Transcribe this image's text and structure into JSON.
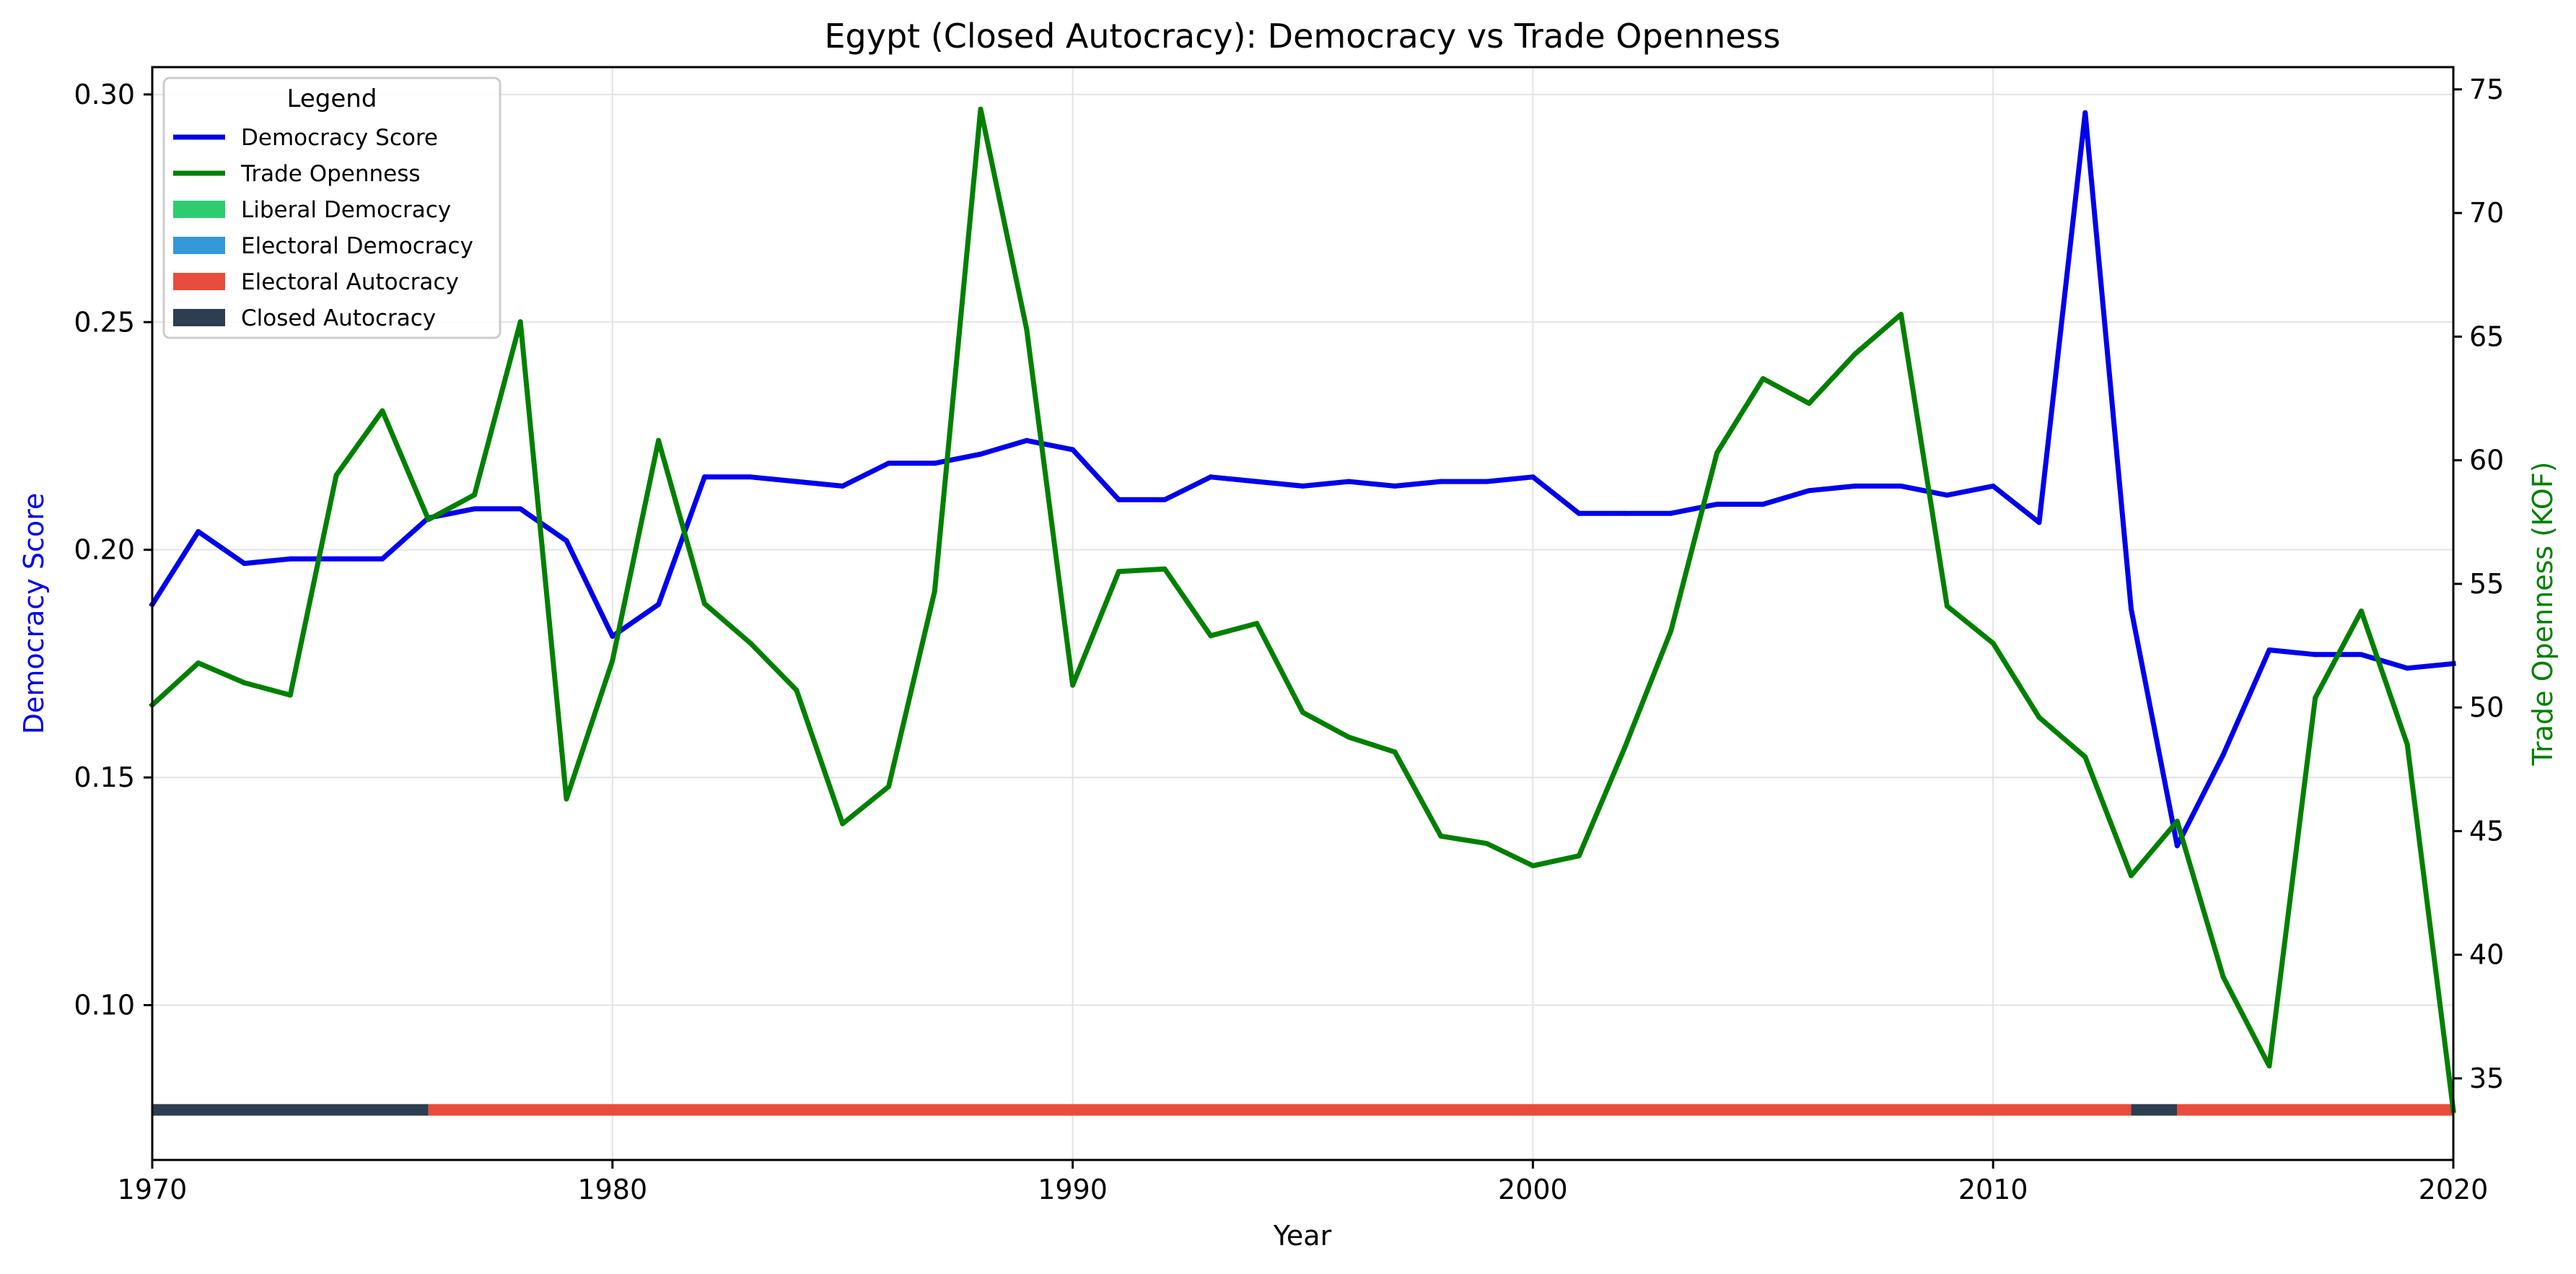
{
  "chart_data": {
    "type": "line",
    "title": "Egypt (Closed Autocracy): Democracy vs Trade Openness",
    "xlabel": "Year",
    "ylabel_left": "Democracy Score",
    "ylabel_right": "Trade Openness (KOF)",
    "xlim": [
      1970,
      2020
    ],
    "ylim_left": [
      0.066,
      0.306
    ],
    "ylim_right": [
      31.7,
      75.9
    ],
    "x_ticks": [
      "1970",
      "1980",
      "1990",
      "2000",
      "2010",
      "2020"
    ],
    "y_ticks_left": [
      "0.10",
      "0.15",
      "0.20",
      "0.25",
      "0.30"
    ],
    "y_ticks_right": [
      "35",
      "40",
      "45",
      "50",
      "55",
      "60",
      "65",
      "70",
      "75"
    ],
    "grid": true,
    "legend": {
      "title": "Legend",
      "placement": "upper-left",
      "entries": [
        {
          "label": "Democracy Score",
          "kind": "line",
          "color": "#0000ee"
        },
        {
          "label": "Trade Openness",
          "kind": "line",
          "color": "#008000"
        },
        {
          "label": "Liberal Democracy",
          "kind": "patch",
          "color": "#2ecc71"
        },
        {
          "label": "Electoral Democracy",
          "kind": "patch",
          "color": "#3498db"
        },
        {
          "label": "Electoral Autocracy",
          "kind": "patch",
          "color": "#e74c3c"
        },
        {
          "label": "Closed Autocracy",
          "kind": "patch",
          "color": "#2c3e50"
        }
      ]
    },
    "x": [
      1970,
      1971,
      1972,
      1973,
      1974,
      1975,
      1976,
      1977,
      1978,
      1979,
      1980,
      1981,
      1982,
      1983,
      1984,
      1985,
      1986,
      1987,
      1988,
      1989,
      1990,
      1991,
      1992,
      1993,
      1994,
      1995,
      1996,
      1997,
      1998,
      1999,
      2000,
      2001,
      2002,
      2003,
      2004,
      2005,
      2006,
      2007,
      2008,
      2009,
      2010,
      2011,
      2012,
      2013,
      2014,
      2015,
      2016,
      2017,
      2018,
      2019,
      2020
    ],
    "series": [
      {
        "name": "Democracy Score",
        "axis": "left",
        "color": "#0000ee",
        "values": [
          0.188,
          0.204,
          0.197,
          0.198,
          0.198,
          0.198,
          0.207,
          0.209,
          0.209,
          0.202,
          0.181,
          0.188,
          0.216,
          0.216,
          0.215,
          0.214,
          0.219,
          0.219,
          0.221,
          0.224,
          0.222,
          0.211,
          0.211,
          0.216,
          0.215,
          0.214,
          0.215,
          0.214,
          0.215,
          0.215,
          0.216,
          0.208,
          0.208,
          0.208,
          0.21,
          0.21,
          0.213,
          0.214,
          0.214,
          0.212,
          0.214,
          0.206,
          0.296,
          0.187,
          0.135,
          0.155,
          0.178,
          0.177,
          0.177,
          0.174,
          0.175
        ]
      },
      {
        "name": "Trade Openness",
        "axis": "right",
        "color": "#008000",
        "values": [
          50.1,
          51.8,
          51.0,
          50.5,
          59.4,
          62.0,
          57.6,
          58.6,
          65.6,
          46.3,
          51.9,
          60.8,
          54.2,
          52.6,
          50.7,
          45.3,
          46.8,
          54.7,
          74.2,
          65.3,
          50.9,
          55.5,
          55.6,
          52.9,
          53.4,
          49.8,
          48.8,
          48.2,
          44.8,
          44.5,
          43.6,
          44.0,
          48.4,
          53.1,
          60.3,
          63.3,
          62.3,
          64.3,
          65.9,
          54.1,
          52.6,
          49.6,
          48.0,
          43.2,
          45.4,
          39.1,
          35.5,
          50.4,
          53.9,
          48.5,
          33.7
        ]
      }
    ],
    "regime_bar": [
      {
        "label": "Closed Autocracy",
        "start": 1970,
        "end": 1976,
        "color": "#2c3e50"
      },
      {
        "label": "Electoral Autocracy",
        "start": 1976,
        "end": 2013,
        "color": "#e74c3c"
      },
      {
        "label": "Closed Autocracy",
        "start": 2013,
        "end": 2014,
        "color": "#2c3e50"
      },
      {
        "label": "Electoral Autocracy",
        "start": 2014,
        "end": 2020,
        "color": "#e74c3c"
      }
    ],
    "regime_bar_level": 0.077
  }
}
